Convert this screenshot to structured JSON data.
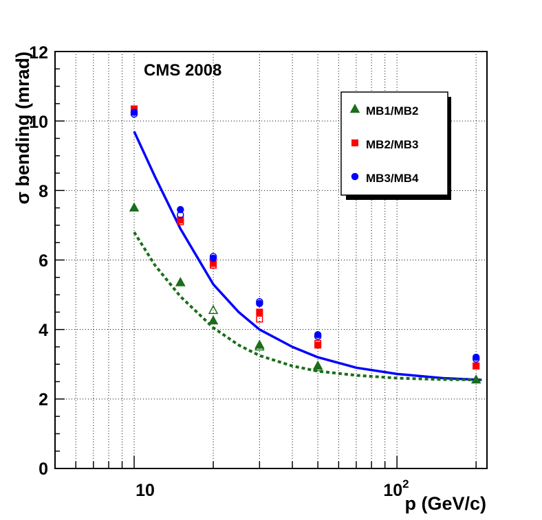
{
  "chart_data": {
    "type": "scatter",
    "title": "",
    "annotation": "CMS 2008",
    "xlabel": "p (GeV/c)",
    "ylabel": "σ bending (mrad)",
    "xscale": "log",
    "xlim": [
      5,
      220
    ],
    "ylim": [
      0,
      12
    ],
    "grid": true,
    "x_tick_labels": [
      {
        "value": 10,
        "base": "10",
        "exp": ""
      },
      {
        "value": 100,
        "base": "10",
        "exp": "2"
      }
    ],
    "y_ticks": [
      0,
      2,
      4,
      6,
      8,
      10,
      12
    ],
    "legend_position": "top-right",
    "series": [
      {
        "name": "MB1/MB2",
        "marker": "triangle",
        "color": "#1a6e1a",
        "filled": [
          {
            "x": 10,
            "y": 7.5
          },
          {
            "x": 15,
            "y": 5.35
          },
          {
            "x": 20,
            "y": 4.25
          },
          {
            "x": 30,
            "y": 3.55
          },
          {
            "x": 50,
            "y": 2.95
          },
          {
            "x": 200,
            "y": 2.55
          }
        ],
        "open": [
          {
            "x": 15,
            "y": 5.35
          },
          {
            "x": 20,
            "y": 4.55
          },
          {
            "x": 30,
            "y": 3.5
          },
          {
            "x": 50,
            "y": 2.9
          }
        ]
      },
      {
        "name": "MB2/MB3",
        "marker": "square",
        "color": "#ff0000",
        "filled": [
          {
            "x": 10,
            "y": 10.35
          },
          {
            "x": 15,
            "y": 7.15
          },
          {
            "x": 20,
            "y": 5.9
          },
          {
            "x": 30,
            "y": 4.5
          },
          {
            "x": 50,
            "y": 3.55
          },
          {
            "x": 200,
            "y": 2.95
          }
        ],
        "open": [
          {
            "x": 10,
            "y": 10.3
          },
          {
            "x": 15,
            "y": 7.1
          },
          {
            "x": 20,
            "y": 5.85
          },
          {
            "x": 30,
            "y": 4.3
          },
          {
            "x": 50,
            "y": 3.6
          },
          {
            "x": 200,
            "y": 2.95
          }
        ]
      },
      {
        "name": "MB3/MB4",
        "marker": "circle",
        "color": "#0000ff",
        "filled": [
          {
            "x": 10,
            "y": 10.25
          },
          {
            "x": 15,
            "y": 7.45
          },
          {
            "x": 20,
            "y": 6.05
          },
          {
            "x": 30,
            "y": 4.75
          },
          {
            "x": 50,
            "y": 3.85
          },
          {
            "x": 200,
            "y": 3.2
          }
        ],
        "open": [
          {
            "x": 10,
            "y": 10.2
          },
          {
            "x": 15,
            "y": 7.3
          },
          {
            "x": 20,
            "y": 6.1
          },
          {
            "x": 30,
            "y": 4.8
          },
          {
            "x": 50,
            "y": 3.8
          },
          {
            "x": 200,
            "y": 3.15
          }
        ]
      }
    ],
    "fits": [
      {
        "name": "fit MB3/MB4",
        "color": "#0000ff",
        "style": "solid",
        "points": [
          {
            "x": 10,
            "y": 9.7
          },
          {
            "x": 12,
            "y": 8.4
          },
          {
            "x": 15,
            "y": 6.9
          },
          {
            "x": 20,
            "y": 5.3
          },
          {
            "x": 25,
            "y": 4.5
          },
          {
            "x": 30,
            "y": 4.0
          },
          {
            "x": 40,
            "y": 3.5
          },
          {
            "x": 50,
            "y": 3.2
          },
          {
            "x": 70,
            "y": 2.9
          },
          {
            "x": 100,
            "y": 2.72
          },
          {
            "x": 150,
            "y": 2.6
          },
          {
            "x": 210,
            "y": 2.55
          }
        ]
      },
      {
        "name": "fit MB1/MB2",
        "color": "#1a6e1a",
        "style": "dashed",
        "points": [
          {
            "x": 10,
            "y": 6.8
          },
          {
            "x": 12,
            "y": 5.85
          },
          {
            "x": 15,
            "y": 4.95
          },
          {
            "x": 20,
            "y": 4.05
          },
          {
            "x": 25,
            "y": 3.55
          },
          {
            "x": 30,
            "y": 3.25
          },
          {
            "x": 40,
            "y": 2.95
          },
          {
            "x": 50,
            "y": 2.8
          },
          {
            "x": 70,
            "y": 2.68
          },
          {
            "x": 100,
            "y": 2.6
          },
          {
            "x": 150,
            "y": 2.56
          },
          {
            "x": 210,
            "y": 2.55
          }
        ]
      }
    ]
  }
}
